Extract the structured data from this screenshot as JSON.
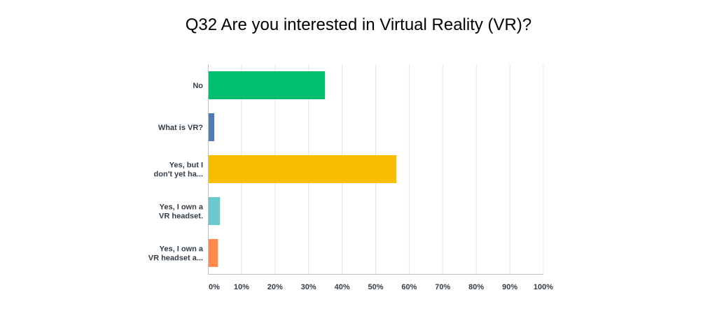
{
  "chart_data": {
    "type": "bar",
    "orientation": "horizontal",
    "title": "Q32 Are you interested in Virtual Reality (VR)?",
    "categories": [
      [
        "No"
      ],
      [
        "What is VR?"
      ],
      [
        "Yes, but I",
        "don't yet ha..."
      ],
      [
        "Yes, I own a",
        "VR headset."
      ],
      [
        "Yes, I own a",
        "VR headset a..."
      ]
    ],
    "values": [
      34.9,
      1.9,
      56.2,
      3.6,
      3.0
    ],
    "colors": [
      "#00bf6f",
      "#507cb6",
      "#f9be00",
      "#6bc8cd",
      "#ff8b4f"
    ],
    "xlim": [
      0,
      100
    ],
    "xticks": [
      "0%",
      "10%",
      "20%",
      "30%",
      "40%",
      "50%",
      "60%",
      "70%",
      "80%",
      "90%",
      "100%"
    ],
    "grid": true,
    "legend": "none"
  }
}
